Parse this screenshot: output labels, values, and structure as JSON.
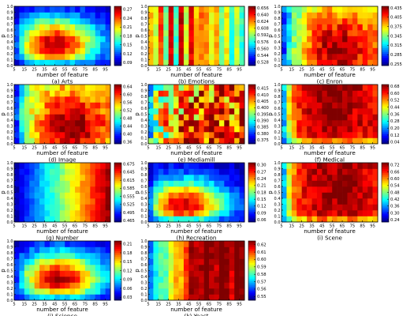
{
  "figure": {
    "xlabel": "number of feature",
    "ylabel": "p",
    "x_ticks": [
      5,
      15,
      25,
      35,
      45,
      55,
      65,
      75,
      85,
      95
    ],
    "y_ticks": [
      0.0,
      0.1,
      0.2,
      0.3,
      0.4,
      0.5,
      0.6,
      0.7,
      0.8,
      0.9,
      1.0
    ],
    "y_tick_labels": [
      "0.0",
      "0.1",
      "0.2",
      "0.3",
      "0.4",
      "0.5",
      "0.6",
      "0.7",
      "0.8",
      "0.9",
      "1.0"
    ],
    "colormap": [
      "#00007f",
      "#0000ff",
      "#007fff",
      "#00ffff",
      "#7fff7f",
      "#ffff00",
      "#ff7f00",
      "#ff0000",
      "#7f0000"
    ]
  },
  "chart_data": [
    {
      "type": "heatmap",
      "caption": "(a) Arts",
      "xlim": [
        5,
        100
      ],
      "ylim": [
        0,
        1
      ],
      "colorbar": [
        "0.27",
        "0.24",
        "0.21",
        "0.18",
        "0.15",
        "0.12",
        "0.09"
      ],
      "colorbar_range": [
        0.08,
        0.28
      ],
      "peak": [
        45,
        0.35
      ],
      "pattern": "bump"
    },
    {
      "type": "heatmap",
      "caption": "(b) Emotions",
      "xlim": [
        5,
        100
      ],
      "ylim": [
        0,
        1
      ],
      "colorbar": [
        "0.656",
        "0.640",
        "0.624",
        "0.608",
        "0.592",
        "0.576",
        "0.560",
        "0.544",
        "0.528"
      ],
      "colorbar_range": [
        0.52,
        0.66
      ],
      "peak": [
        40,
        0.5
      ],
      "pattern": "stripes"
    },
    {
      "type": "heatmap",
      "caption": "(c) Enron",
      "xlim": [
        5,
        100
      ],
      "ylim": [
        0,
        1
      ],
      "colorbar": [
        "0.435",
        "0.405",
        "0.375",
        "0.345",
        "0.315",
        "0.285",
        "0.255"
      ],
      "colorbar_range": [
        0.25,
        0.44
      ],
      "peak": [
        60,
        0.3
      ],
      "pattern": "broad"
    },
    {
      "type": "heatmap",
      "caption": "(d) Image",
      "xlim": [
        5,
        100
      ],
      "ylim": [
        0,
        1
      ],
      "colorbar": [
        "0.64",
        "0.60",
        "0.56",
        "0.52",
        "0.48",
        "0.44",
        "0.40",
        "0.36"
      ],
      "colorbar_range": [
        0.35,
        0.65
      ],
      "peak": [
        60,
        0.3
      ],
      "pattern": "broad"
    },
    {
      "type": "heatmap",
      "caption": "(e) Mediamill",
      "xlim": [
        5,
        100
      ],
      "ylim": [
        0,
        1
      ],
      "colorbar": [
        "0.415",
        "0.410",
        "0.405",
        "0.400",
        "0.395",
        "0.390",
        "0.385",
        "0.380",
        "0.375"
      ],
      "colorbar_range": [
        0.372,
        0.418
      ],
      "peak": [
        45,
        0.5
      ],
      "pattern": "noisy"
    },
    {
      "type": "heatmap",
      "caption": "(f) Medical",
      "xlim": [
        5,
        100
      ],
      "ylim": [
        0,
        1
      ],
      "colorbar": [
        "0.68",
        "0.60",
        "0.52",
        "0.44",
        "0.36",
        "0.28",
        "0.20",
        "0.12",
        "0.04"
      ],
      "colorbar_range": [
        0.02,
        0.7
      ],
      "peak": [
        55,
        0.5
      ],
      "pattern": "plateau"
    },
    {
      "type": "heatmap",
      "caption": "(g) Number",
      "xlim": [
        5,
        100
      ],
      "ylim": [
        0,
        1
      ],
      "colorbar": [
        "0.675",
        "0.645",
        "0.615",
        "0.585",
        "0.555",
        "0.525",
        "0.495",
        "0.465"
      ],
      "colorbar_range": [
        0.46,
        0.68
      ],
      "peak": [
        95,
        0.5
      ],
      "pattern": "gradient"
    },
    {
      "type": "heatmap",
      "caption": "(h) Recreation",
      "xlim": [
        5,
        100
      ],
      "ylim": [
        0,
        1
      ],
      "colorbar": [
        "0.30",
        "0.27",
        "0.24",
        "0.21",
        "0.18",
        "0.15",
        "0.12",
        "0.09",
        "0.06"
      ],
      "colorbar_range": [
        0.05,
        0.31
      ],
      "peak": [
        40,
        0.25
      ],
      "pattern": "bump"
    },
    {
      "type": "heatmap",
      "caption": "(i) Scene",
      "xlim": [
        5,
        100
      ],
      "ylim": [
        0,
        1
      ],
      "colorbar": [
        "0.72",
        "0.66",
        "0.60",
        "0.54",
        "0.48",
        "0.42",
        "0.36",
        "0.30",
        "0.24"
      ],
      "colorbar_range": [
        0.22,
        0.74
      ],
      "peak": [
        60,
        0.5
      ],
      "pattern": "plateau"
    },
    {
      "type": "heatmap",
      "caption": "(j) Science",
      "xlim": [
        5,
        100
      ],
      "ylim": [
        0,
        1
      ],
      "colorbar": [
        "0.21",
        "0.18",
        "0.15",
        "0.12",
        "0.09",
        "0.06",
        "0.03"
      ],
      "colorbar_range": [
        0.02,
        0.22
      ],
      "peak": [
        50,
        0.35
      ],
      "pattern": "bump"
    },
    {
      "type": "heatmap",
      "caption": "(k) Yeast",
      "xlim": [
        5,
        100
      ],
      "ylim": [
        0,
        1
      ],
      "colorbar": [
        "0.62",
        "0.61",
        "0.60",
        "0.59",
        "0.58",
        "0.57",
        "0.56",
        "0.55"
      ],
      "colorbar_range": [
        0.545,
        0.625
      ],
      "peak": [
        70,
        0.5
      ],
      "pattern": "stripes"
    }
  ]
}
